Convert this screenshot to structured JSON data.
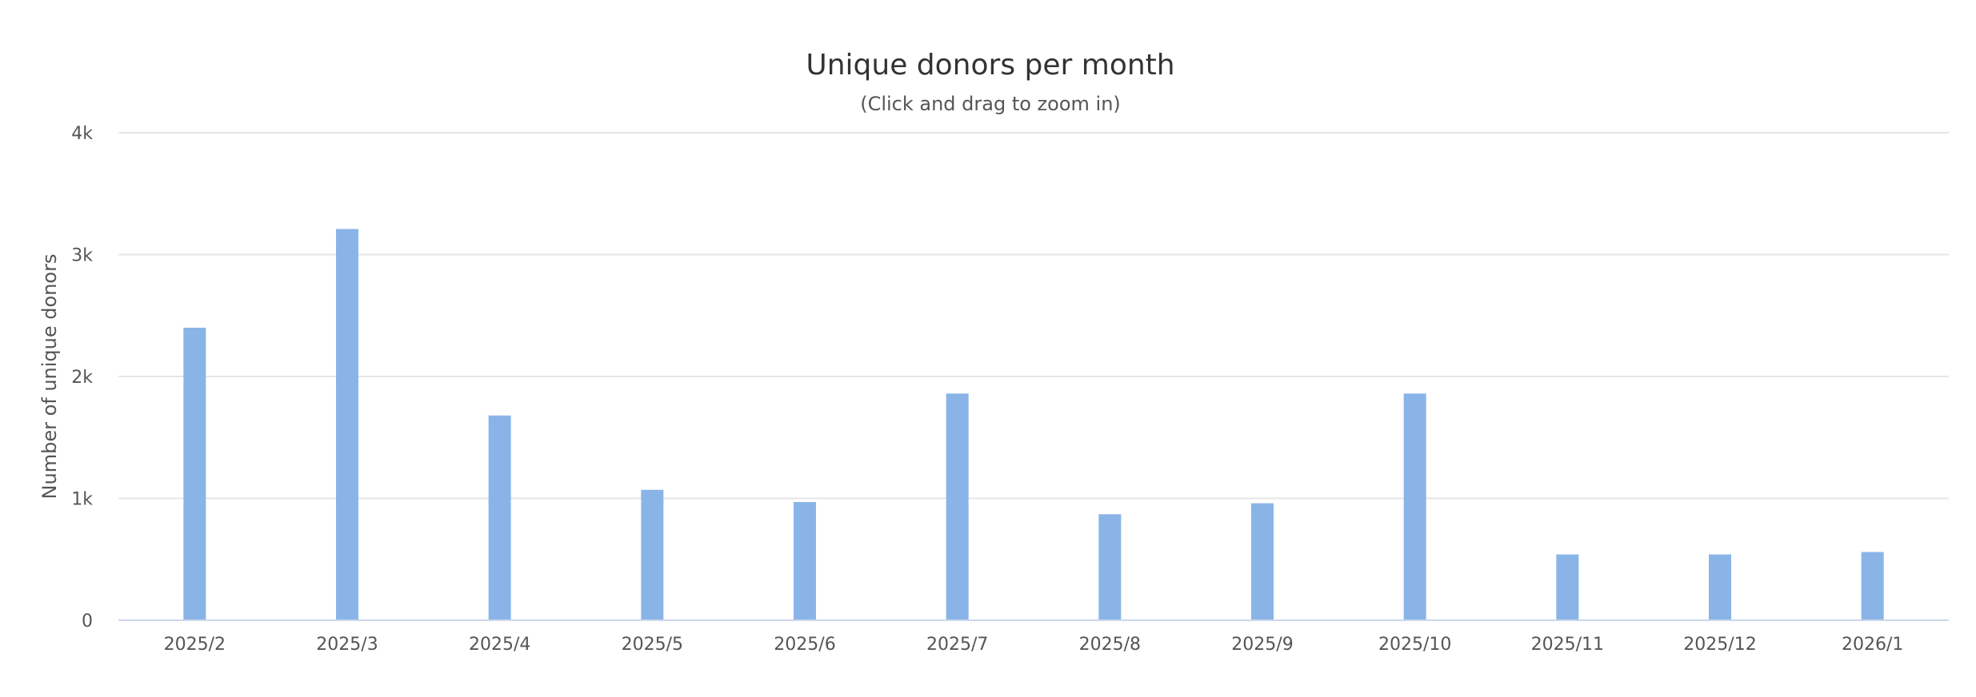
{
  "chart_data": {
    "type": "bar",
    "title": "Unique donors per month",
    "subtitle": "(Click and drag to zoom in)",
    "xlabel": "",
    "ylabel": "Number of unique donors",
    "categories": [
      "2025/2",
      "2025/3",
      "2025/4",
      "2025/5",
      "2025/6",
      "2025/7",
      "2025/8",
      "2025/9",
      "2025/10",
      "2025/11",
      "2025/12",
      "2026/1"
    ],
    "values": [
      2400,
      3210,
      1680,
      1070,
      970,
      1860,
      870,
      960,
      1860,
      540,
      540,
      560
    ],
    "ylim": [
      0,
      4000
    ],
    "yticks": [
      {
        "value": 0,
        "label": "0"
      },
      {
        "value": 1000,
        "label": "1k"
      },
      {
        "value": 2000,
        "label": "2k"
      },
      {
        "value": 3000,
        "label": "3k"
      },
      {
        "value": 4000,
        "label": "4k"
      }
    ],
    "grid": true,
    "legend": "none",
    "colors": {
      "bar": "#8ab4e8",
      "grid": "#e6e6e6",
      "axis": "#ccd6eb"
    }
  }
}
